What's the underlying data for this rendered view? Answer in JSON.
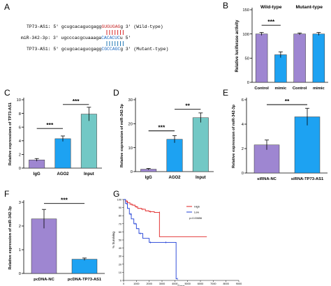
{
  "panel_labels": [
    "A",
    "B",
    "C",
    "D",
    "E",
    "F",
    "G"
  ],
  "seq": {
    "row1_prefix": "TP73-AS1: 5' gcugcacagucgagg",
    "row1_highlight": "GUGUGAG",
    "row1_suffix": "g 3' (Wild-type)",
    "row2_prefix": "miR-342-3p: 3' ugcccacgcuaaaga",
    "row2_highlight": "CACACUC",
    "row2_suffix": "u 5'",
    "row3_prefix": "TP73-AS1: 5' gcugcacagucgagg",
    "row3_highlight": "CGCCAGC",
    "row3_suffix": "g 3' (Mutant-type)",
    "wild_pair_color": "#d62728",
    "mutant_pair_color": "#1f77b4"
  },
  "colors": {
    "purple": "#9e86d1",
    "blue": "#1da2f2",
    "teal": "#72c8c5",
    "km_high": "#e02020",
    "km_low": "#1f3fd6"
  },
  "chart_data": [
    {
      "panel": "B",
      "type": "bar",
      "ylabel": "Relative luciferase activity",
      "ylim": [
        0,
        150
      ],
      "yticks": [
        "0",
        "50",
        "100",
        "150"
      ],
      "groups": [
        "Wild-type",
        "Mutant-type"
      ],
      "categories": [
        "Control",
        "mimic",
        "Control",
        "mimic"
      ],
      "values": [
        100,
        57,
        100,
        100
      ],
      "errors": [
        3,
        6,
        2,
        3
      ],
      "significance": [
        {
          "from": 0,
          "to": 1,
          "label": "***"
        }
      ]
    },
    {
      "panel": "C",
      "type": "bar",
      "ylabel": "Relative expressions of TP73-AS1",
      "ylim": [
        0,
        10
      ],
      "yticks": [
        "0",
        "2",
        "4",
        "6",
        "8",
        "10"
      ],
      "categories": [
        "IgG",
        "AGO2",
        "Input"
      ],
      "values": [
        1.2,
        4.3,
        7.9
      ],
      "errors": [
        0.2,
        0.4,
        1.0
      ],
      "significance": [
        {
          "from": 0,
          "to": 1,
          "label": "***"
        },
        {
          "from": 1,
          "to": 2,
          "label": "***"
        }
      ]
    },
    {
      "panel": "D",
      "type": "bar",
      "ylabel": "Relative expression of miR-342-3p",
      "ylim": [
        0,
        30
      ],
      "yticks": [
        "0",
        "10",
        "20",
        "30"
      ],
      "categories": [
        "IgG",
        "AGO2",
        "Input"
      ],
      "values": [
        1,
        13.5,
        22.5
      ],
      "errors": [
        0.3,
        1.5,
        2.0
      ],
      "significance": [
        {
          "from": 0,
          "to": 1,
          "label": "***"
        },
        {
          "from": 1,
          "to": 2,
          "label": "**"
        }
      ]
    },
    {
      "panel": "E",
      "type": "bar",
      "ylabel": "Relative expression of miR-342-3p",
      "ylim": [
        0,
        6
      ],
      "yticks": [
        "0",
        "2",
        "4",
        "6"
      ],
      "categories": [
        "siRNA-NC",
        "siRNA-TP73-AS1"
      ],
      "values": [
        2.3,
        4.6
      ],
      "errors": [
        0.4,
        0.7
      ],
      "significance": [
        {
          "from": 0,
          "to": 1,
          "label": "**"
        }
      ]
    },
    {
      "panel": "F",
      "type": "bar",
      "ylabel": "Relative expression of miR-342-3p",
      "ylim": [
        0,
        3
      ],
      "yticks": [
        "0",
        "1",
        "2",
        "3"
      ],
      "categories": [
        "pcDNA-NC",
        "pcDNA-TP73-AS1"
      ],
      "values": [
        2.3,
        0.6
      ],
      "errors": [
        0.4,
        0.05
      ],
      "significance": [
        {
          "from": 0,
          "to": 1,
          "label": "***"
        }
      ]
    },
    {
      "panel": "G",
      "type": "line",
      "ylabel": "% Surviving",
      "xlabel": "Days",
      "xlim": [
        0,
        9000
      ],
      "ylim": [
        0,
        100
      ],
      "xticks": [
        "0",
        "1000",
        "2000",
        "3000",
        "4000",
        "5000",
        "6000",
        "7000",
        "8000",
        "9000"
      ],
      "yticks": [
        "0",
        "10",
        "20",
        "30",
        "40",
        "50",
        "60",
        "70",
        "80",
        "90",
        "100"
      ],
      "legend_placement": "top-right",
      "legend_labels": [
        "High",
        "Low"
      ],
      "pvalue_text": "p=0.00656",
      "series": [
        {
          "name": "High",
          "x": [
            0,
            150,
            300,
            500,
            700,
            900,
            1100,
            1400,
            1700,
            2000,
            2400,
            2700,
            2800,
            6500
          ],
          "y": [
            100,
            98,
            96,
            94,
            93,
            91,
            89,
            88,
            86,
            85,
            84,
            84,
            54,
            54
          ]
        },
        {
          "name": "Low",
          "x": [
            0,
            150,
            300,
            450,
            600,
            800,
            1000,
            1200,
            1500,
            2000,
            2500,
            3200,
            3900,
            4100,
            4200
          ],
          "y": [
            100,
            95,
            89,
            82,
            76,
            70,
            64,
            58,
            52,
            47,
            47,
            47,
            47,
            2,
            2
          ]
        }
      ]
    }
  ]
}
